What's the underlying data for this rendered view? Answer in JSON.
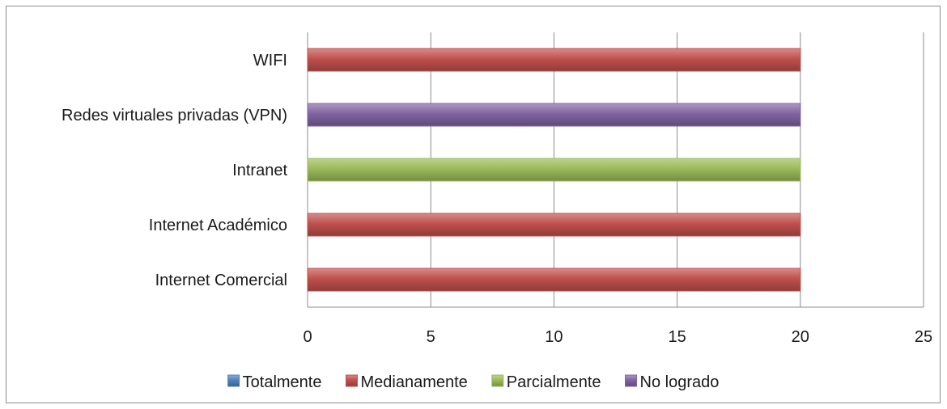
{
  "chart_data": {
    "type": "bar",
    "orientation": "horizontal",
    "categories": [
      "WIFI",
      "Redes virtuales privadas (VPN)",
      "Intranet",
      "Internet Académico",
      "Internet Comercial"
    ],
    "series": [
      {
        "name": "Totalmente",
        "color": "#4f81bd",
        "values": [
          0,
          0,
          0,
          0,
          0
        ]
      },
      {
        "name": "Medianamente",
        "color": "#c0504d",
        "values": [
          20,
          0,
          0,
          20,
          20
        ]
      },
      {
        "name": "Parcialmente",
        "color": "#9bbb59",
        "values": [
          0,
          0,
          20,
          0,
          0
        ]
      },
      {
        "name": "No logrado",
        "color": "#8064a2",
        "values": [
          0,
          20,
          0,
          0,
          0
        ]
      }
    ],
    "xlim": [
      0,
      25
    ],
    "xticks": [
      0,
      5,
      10,
      15,
      20,
      25
    ],
    "grid": true,
    "legend": "bottom"
  }
}
